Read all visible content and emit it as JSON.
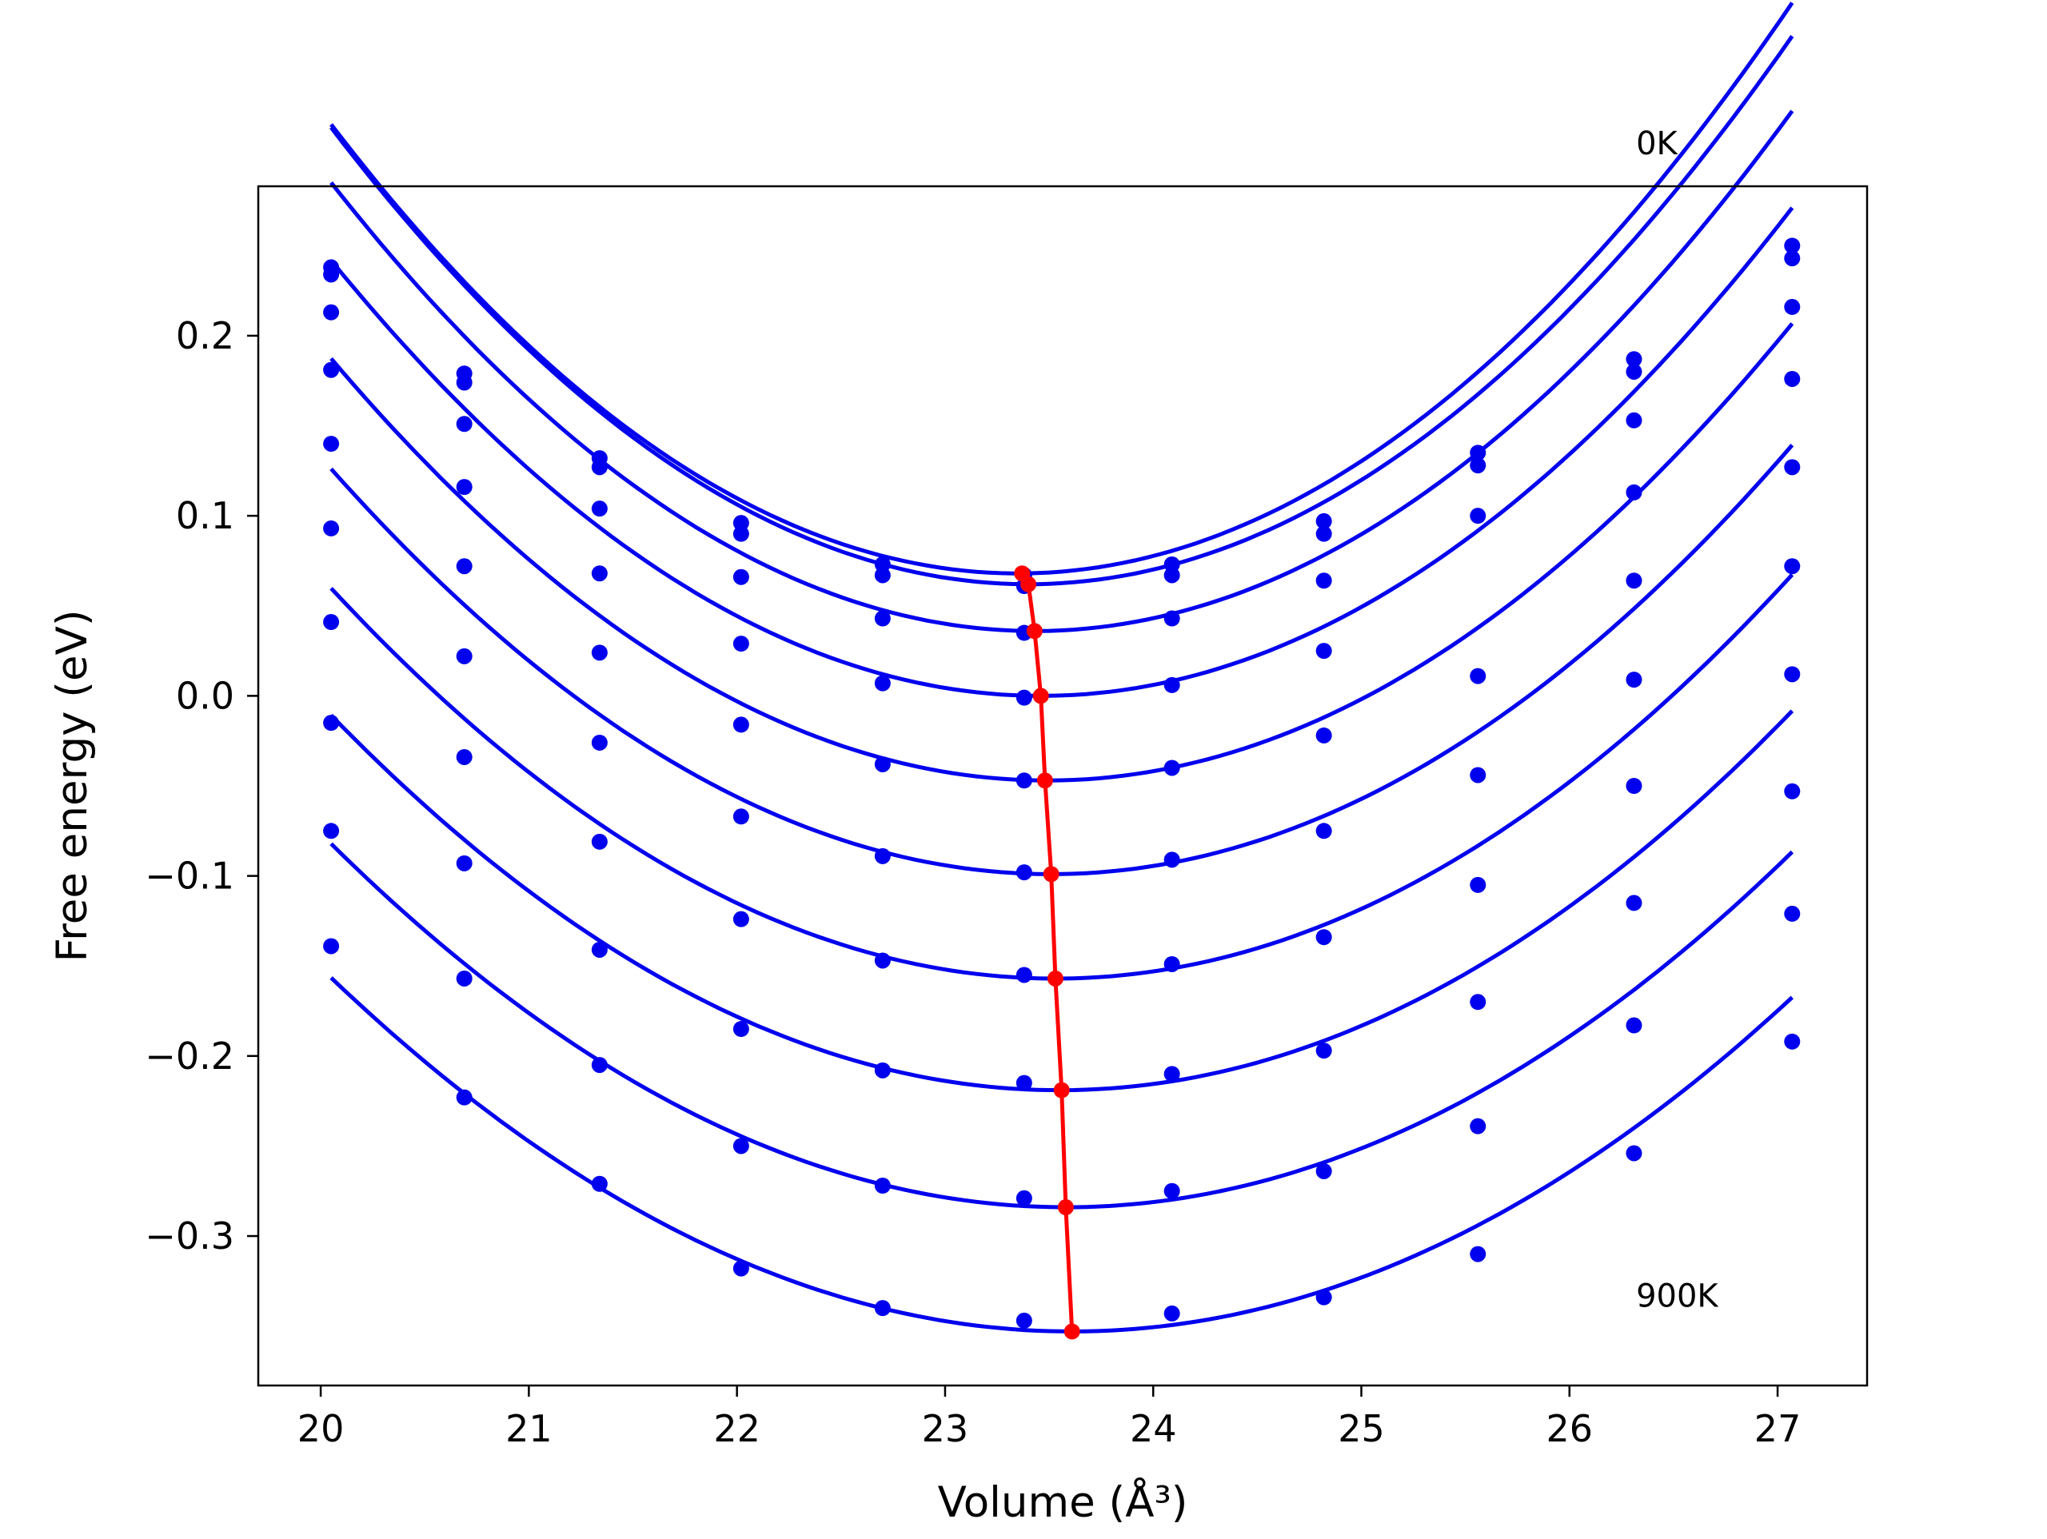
{
  "chart_data": {
    "type": "line",
    "title": "",
    "xlabel": "Volume (Å³)",
    "ylabel": "Free energy (eV)",
    "xlim": [
      19.7,
      27.43
    ],
    "ylim": [
      -0.383,
      0.283
    ],
    "xticks": [
      20,
      21,
      22,
      23,
      24,
      25,
      26,
      27
    ],
    "xtick_labels": [
      "20",
      "21",
      "22",
      "23",
      "24",
      "25",
      "26",
      "27"
    ],
    "yticks": [
      -0.3,
      -0.2,
      -0.1,
      0.0,
      0.1,
      0.2
    ],
    "ytick_labels": [
      "−0.3",
      "−0.2",
      "−0.1",
      "0.0",
      "0.1",
      "0.2"
    ],
    "annotations": [
      {
        "text": "0K",
        "x": 26.32,
        "y": 0.307
      },
      {
        "text": "900K",
        "x": 26.32,
        "y": -0.333
      }
    ],
    "grid": false,
    "volumes": [
      20.05,
      20.69,
      21.34,
      22.02,
      22.7,
      23.38,
      24.09,
      24.82,
      25.56,
      26.31,
      27.07
    ],
    "series": [
      {
        "fit": {
          "e0": 0.068,
          "v0": 23.35,
          "k": 0.0229
        },
        "points": [
          0.238,
          0.179,
          0.132,
          0.096,
          0.073,
          0.067,
          0.073,
          0.097,
          0.135,
          0.187,
          0.25
        ]
      },
      {
        "fit": {
          "e0": 0.062,
          "v0": 23.4,
          "k": 0.0226
        },
        "points": [
          0.234,
          0.174,
          0.127,
          0.09,
          0.067,
          0.061,
          0.067,
          0.09,
          0.128,
          0.18,
          0.243
        ]
      },
      {
        "fit": {
          "e0": 0.036,
          "v0": 23.43,
          "k": 0.0218
        },
        "points": [
          0.213,
          0.151,
          0.104,
          0.066,
          0.043,
          0.035,
          0.043,
          0.064,
          0.1,
          0.153,
          0.216
        ]
      },
      {
        "fit": {
          "e0": 0.0,
          "v0": 23.46,
          "k": 0.0208
        },
        "points": [
          0.181,
          0.116,
          0.068,
          0.029,
          0.007,
          -0.001,
          0.006,
          0.025,
          0.011,
          0.113,
          0.176
        ]
      },
      {
        "fit": {
          "e0": -0.047,
          "v0": 23.49,
          "k": 0.0198
        },
        "points": [
          0.14,
          0.072,
          0.024,
          -0.016,
          -0.038,
          -0.047,
          -0.04,
          -0.022,
          -0.044,
          0.064,
          0.127
        ]
      },
      {
        "fit": {
          "e0": -0.099,
          "v0": 23.51,
          "k": 0.0188
        },
        "points": [
          0.093,
          0.022,
          -0.026,
          -0.067,
          -0.089,
          -0.098,
          -0.091,
          -0.075,
          -0.105,
          0.009,
          0.072
        ]
      },
      {
        "fit": {
          "e0": -0.157,
          "v0": 23.53,
          "k": 0.0179
        },
        "points": [
          0.041,
          -0.034,
          -0.081,
          -0.124,
          -0.147,
          -0.155,
          -0.149,
          -0.134,
          -0.17,
          -0.05,
          0.012
        ]
      },
      {
        "fit": {
          "e0": -0.219,
          "v0": 23.55,
          "k": 0.017
        },
        "points": [
          -0.015,
          -0.093,
          -0.141,
          -0.185,
          -0.208,
          -0.215,
          -0.21,
          -0.197,
          -0.239,
          -0.115,
          -0.053
        ]
      },
      {
        "fit": {
          "e0": -0.284,
          "v0": 23.58,
          "k": 0.0162
        },
        "points": [
          -0.075,
          -0.157,
          -0.205,
          -0.25,
          -0.272,
          -0.279,
          -0.275,
          -0.264,
          -0.31,
          -0.183,
          -0.121
        ]
      },
      {
        "fit": {
          "e0": -0.353,
          "v0": 23.61,
          "k": 0.0155
        },
        "points": [
          -0.139,
          -0.223,
          -0.271,
          -0.318,
          -0.34,
          -0.347,
          -0.343,
          -0.334,
          null,
          -0.254,
          -0.192
        ]
      }
    ],
    "minimum_path": {
      "x": [
        23.37,
        23.4,
        23.43,
        23.46,
        23.48,
        23.51,
        23.53,
        23.56,
        23.58,
        23.61
      ],
      "y": [
        0.068,
        0.062,
        0.036,
        0.0,
        -0.047,
        -0.099,
        -0.157,
        -0.219,
        -0.284,
        -0.353
      ]
    },
    "colors": {
      "curves": "#0000ee",
      "minimum_path": "#ff0000",
      "axes": "#000000"
    }
  }
}
